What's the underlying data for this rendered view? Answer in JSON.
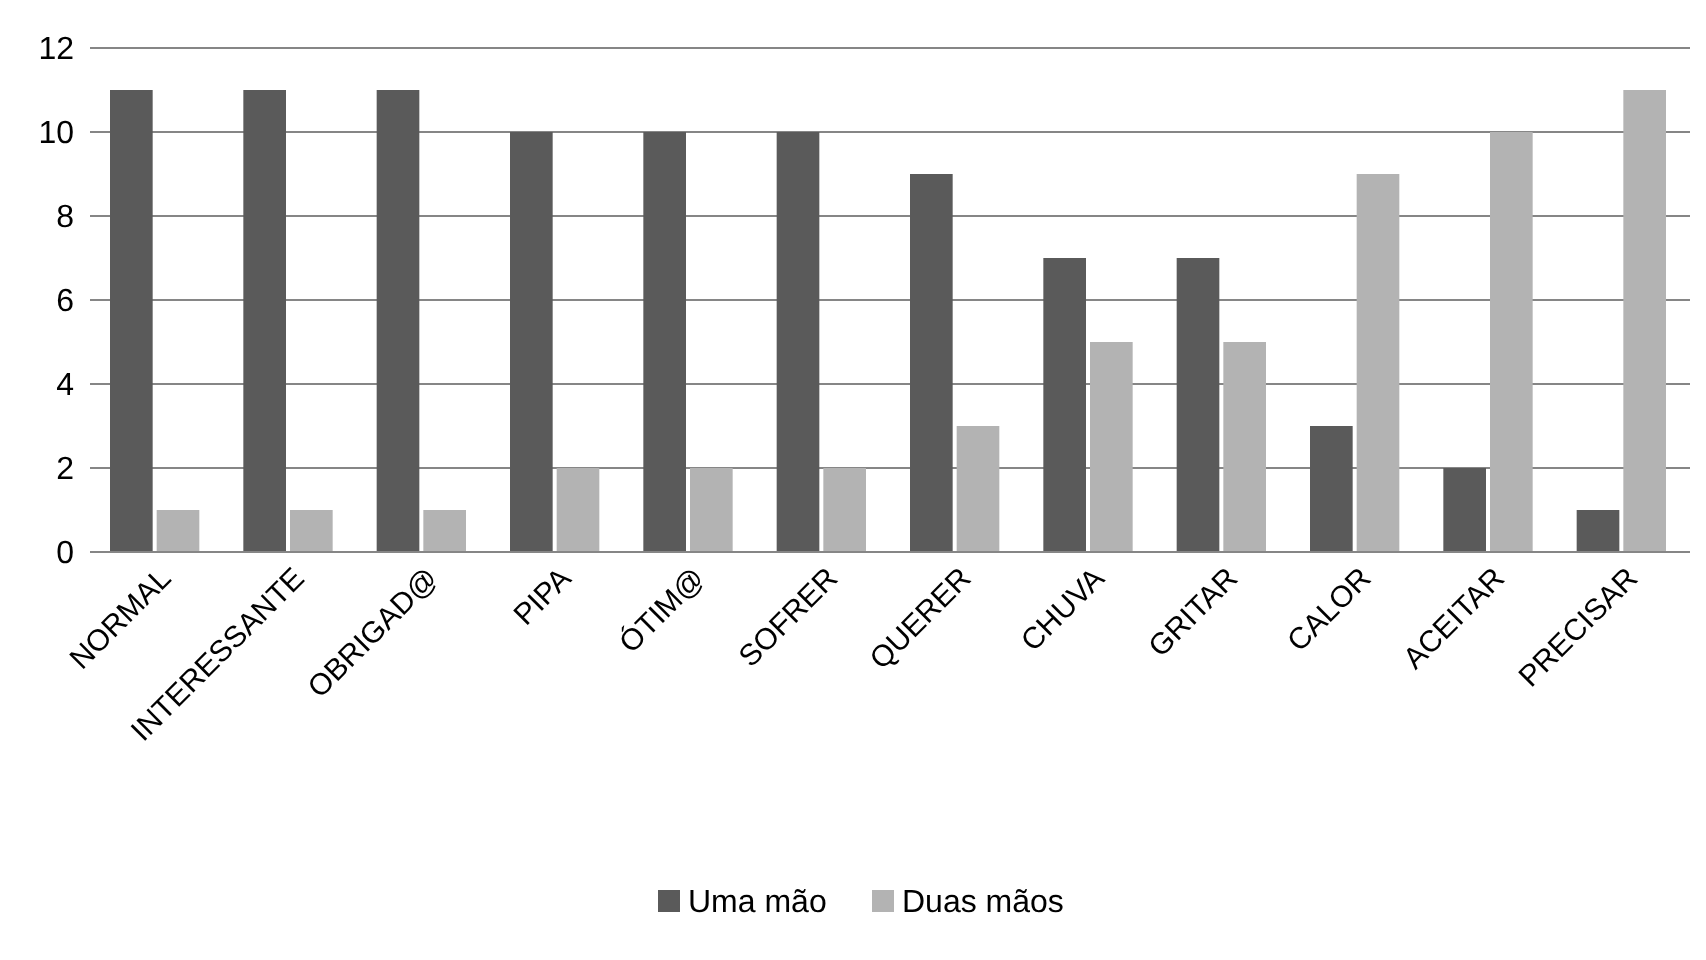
{
  "chart_data": {
    "type": "bar",
    "categories": [
      "NORMAL",
      "INTERESSANTE",
      "OBRIGAD@",
      "PIPA",
      "ÓTIM@",
      "SOFRER",
      "QUERER",
      "CHUVA",
      "GRITAR",
      "CALOR",
      "ACEITAR",
      "PRECISAR"
    ],
    "series": [
      {
        "name": "Uma mão",
        "color": "#5a5a5a",
        "values": [
          11,
          11,
          11,
          10,
          10,
          10,
          9,
          7,
          7,
          3,
          2,
          1
        ]
      },
      {
        "name": "Duas mãos",
        "color": "#b3b3b3",
        "values": [
          1,
          1,
          1,
          2,
          2,
          2,
          3,
          5,
          5,
          9,
          10,
          11
        ]
      }
    ],
    "ylim": [
      0,
      12
    ],
    "yticks": [
      0,
      2,
      4,
      6,
      8,
      10,
      12
    ],
    "grid": "y",
    "legend": "bottom"
  }
}
